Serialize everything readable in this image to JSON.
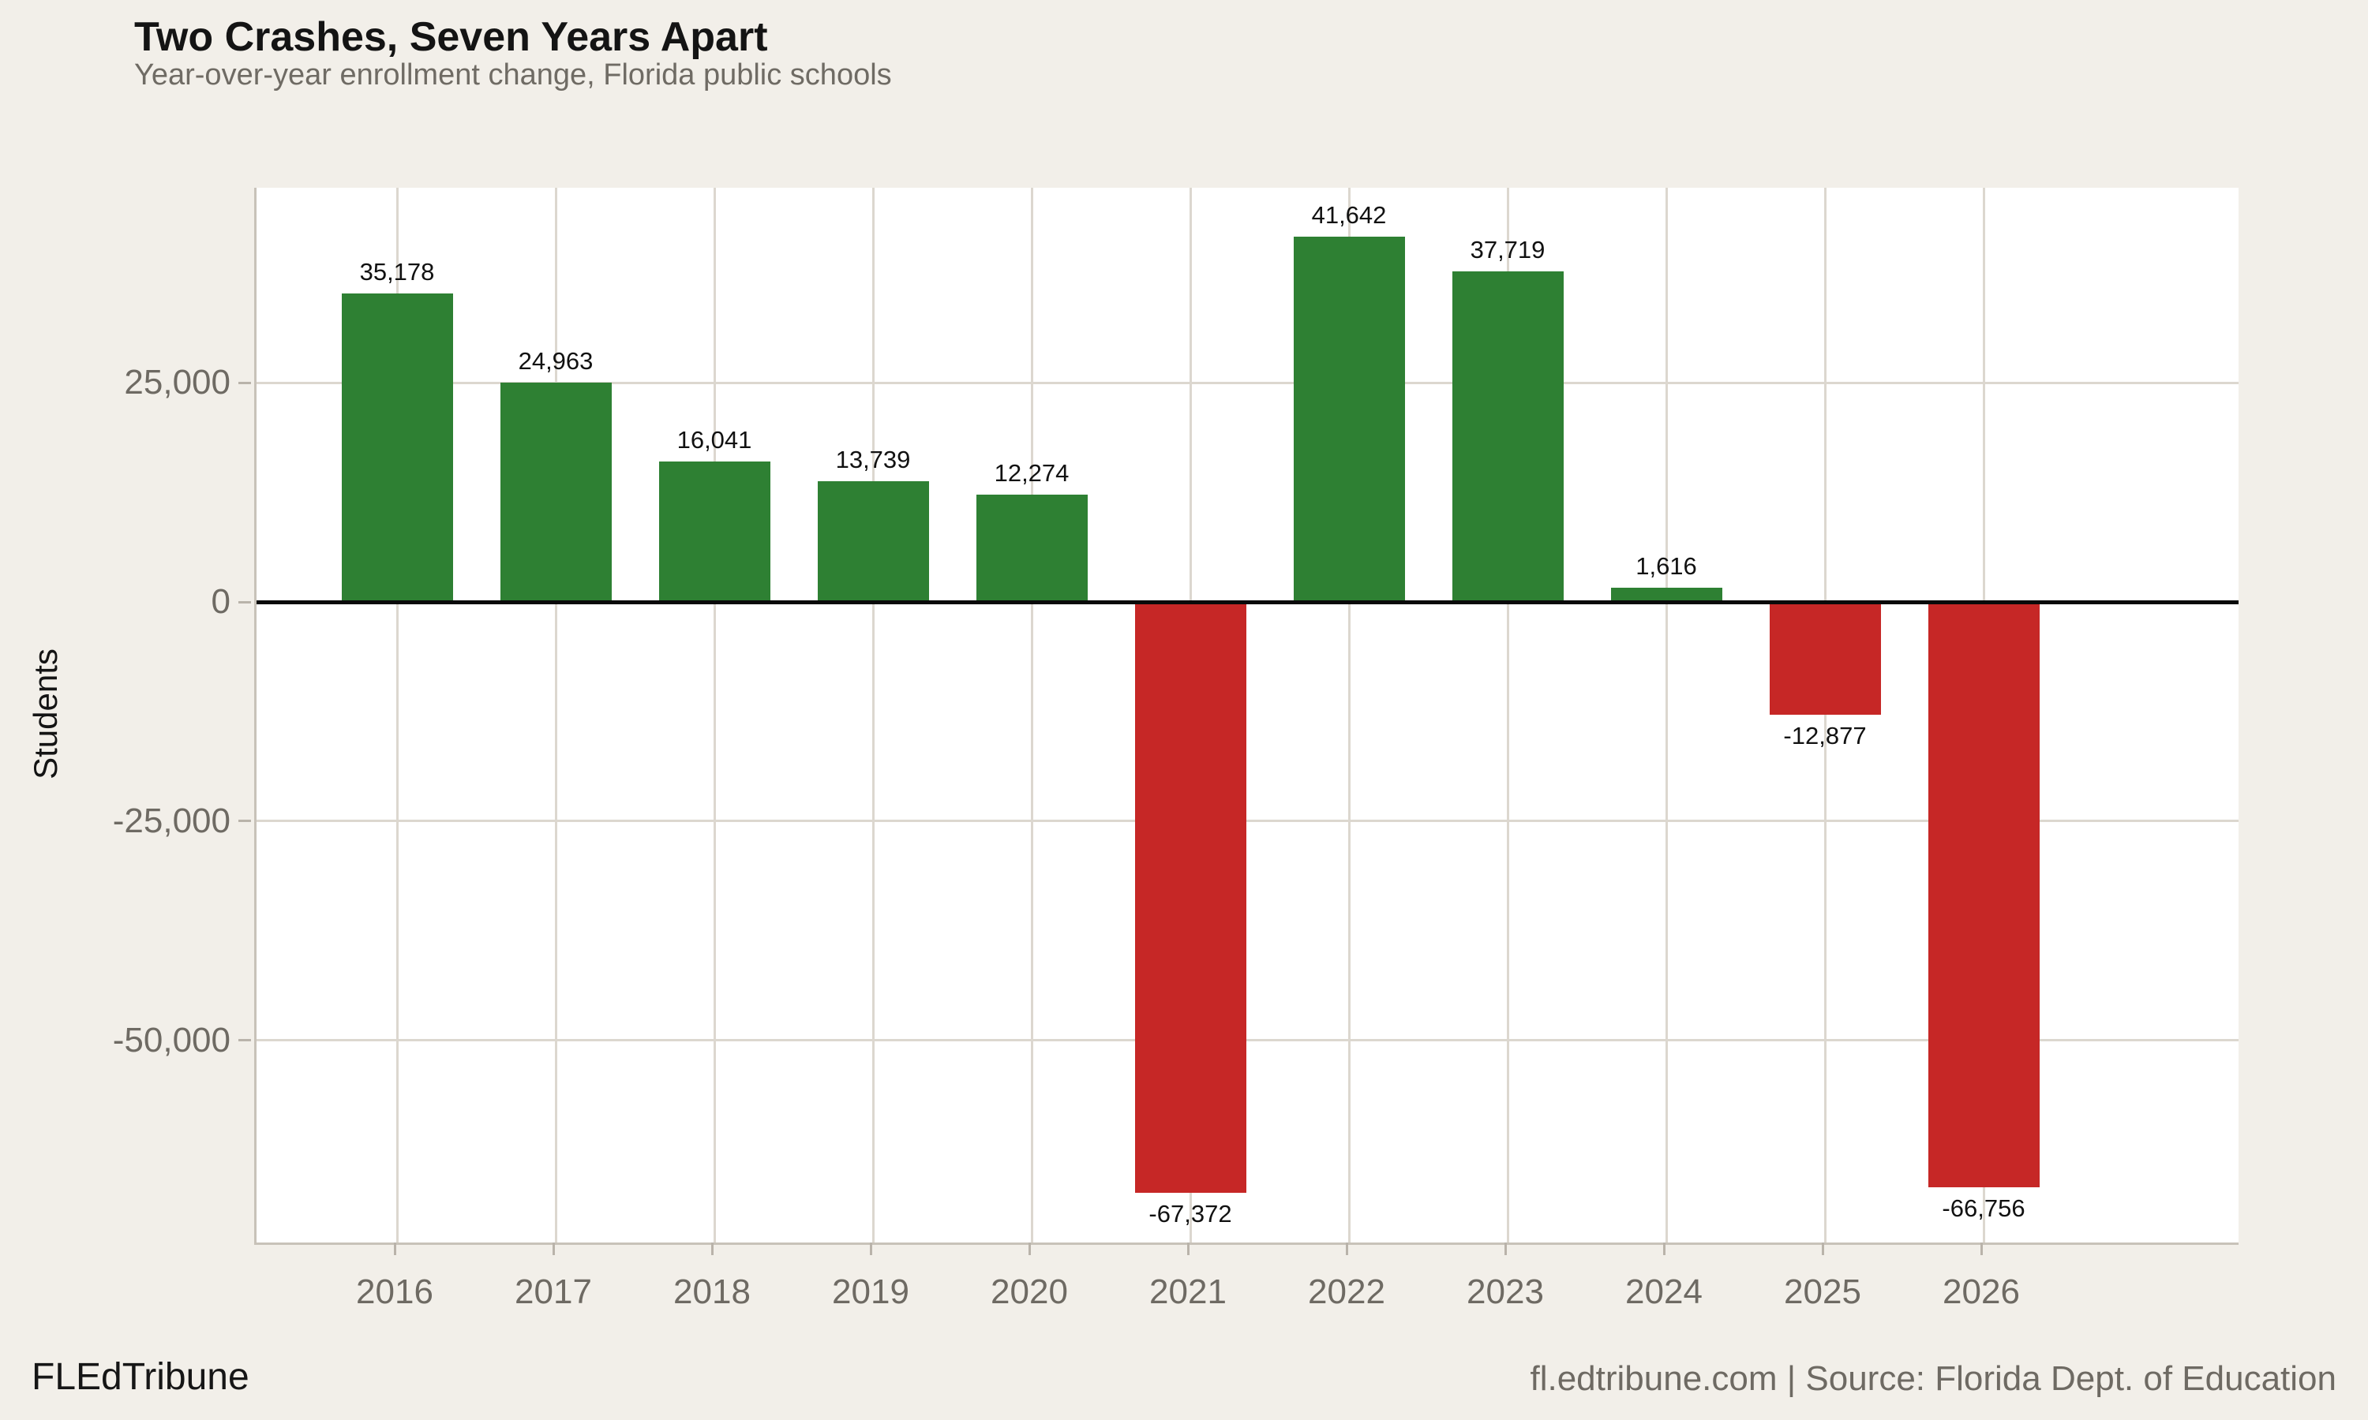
{
  "chart_data": {
    "type": "bar",
    "title": "Two Crashes, Seven Years Apart",
    "subtitle": "Year-over-year enrollment change, Florida public schools",
    "categories": [
      "2016",
      "2017",
      "2018",
      "2019",
      "2020",
      "2021",
      "2022",
      "2023",
      "2024",
      "2025",
      "2026"
    ],
    "values": [
      35178,
      24963,
      16041,
      13739,
      12274,
      -67372,
      41642,
      37719,
      1616,
      -12877,
      -66756
    ],
    "value_labels": [
      "35,178",
      "24,963",
      "16,041",
      "13,739",
      "12,274",
      "-67,372",
      "41,642",
      "37,719",
      "1,616",
      "-12,877",
      "-66,756"
    ],
    "xlabel": "",
    "ylabel": "Students",
    "ylim": [
      -73000,
      47200
    ],
    "yticks": {
      "values": [
        25000,
        0,
        -25000,
        -50000
      ],
      "labels": [
        "25,000",
        "0",
        "-25,000",
        "-50,000"
      ]
    },
    "grid": true,
    "legend": "none",
    "colors": {
      "positive": "#2e8033",
      "negative": "#c62726",
      "background": "#f2efe9",
      "plot_background": "#ffffff",
      "gridline": "#dcd7cf",
      "zero_line": "#0a0a0a",
      "tick_text": "#6e6a63"
    }
  },
  "footer": {
    "brand": "FLEdTribune",
    "source": "fl.edtribune.com | Source: Florida Dept. of Education"
  }
}
